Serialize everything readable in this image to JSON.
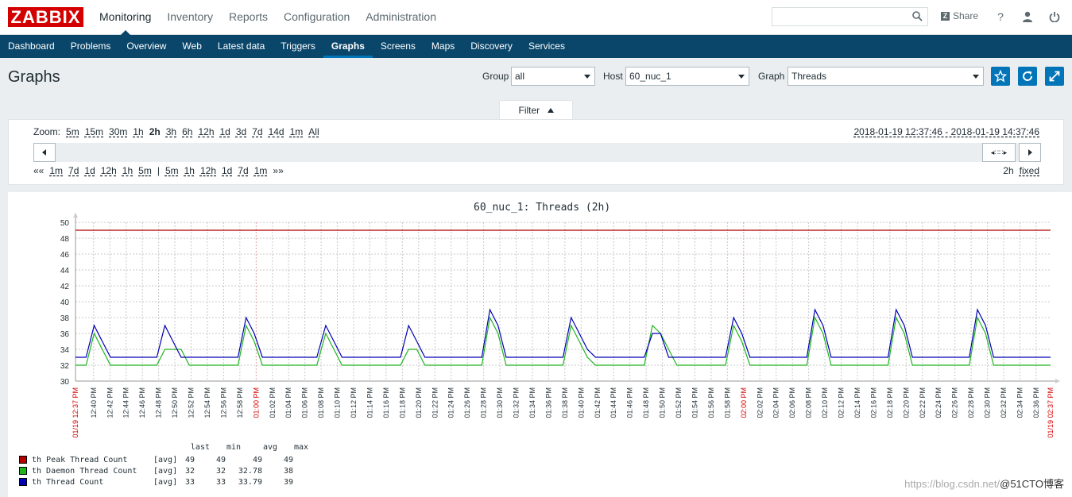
{
  "brand": {
    "logo": "ZABBIX"
  },
  "topnav": [
    "Monitoring",
    "Inventory",
    "Reports",
    "Configuration",
    "Administration"
  ],
  "header": {
    "share_label": "Share",
    "help": "?",
    "search_placeholder": ""
  },
  "subnav": [
    "Dashboard",
    "Problems",
    "Overview",
    "Web",
    "Latest data",
    "Triggers",
    "Graphs",
    "Screens",
    "Maps",
    "Discovery",
    "Services"
  ],
  "page": {
    "title": "Graphs",
    "group_label": "Group",
    "group_value": "all",
    "host_label": "Host",
    "host_value": "60_nuc_1",
    "graph_label": "Graph",
    "graph_value": "Threads"
  },
  "filter": {
    "tab_label": "Filter",
    "zoom_label": "Zoom:",
    "zoom": [
      "5m",
      "15m",
      "30m",
      "1h",
      "2h",
      "3h",
      "6h",
      "12h",
      "1d",
      "3d",
      "7d",
      "14d",
      "1m",
      "All"
    ],
    "zoom_active": "2h",
    "period": "2018-01-19 12:37:46 - 2018-01-19 14:37:46",
    "back_start": "««",
    "back": [
      "1m",
      "7d",
      "1d",
      "12h",
      "1h",
      "5m"
    ],
    "sep": "|",
    "fwd": [
      "5m",
      "1h",
      "12h",
      "1d",
      "7d",
      "1m"
    ],
    "fwd_end": "»»",
    "duration": "2h",
    "fixed_label": "fixed",
    "handle": "◂∷∷▸"
  },
  "graph": {
    "title": "60_nuc_1: Threads (2h)"
  },
  "chart_data": {
    "type": "line",
    "ylim": [
      30,
      50
    ],
    "yticks": [
      30,
      32,
      34,
      36,
      38,
      40,
      42,
      44,
      46,
      48,
      50
    ],
    "x_start_label": "01/19 12:37 PM",
    "x_end_label": "01/19 02:37 PM",
    "x_mid_labels": [
      "01:00 PM",
      "02:00 PM"
    ],
    "x_ticks": [
      "12:40 PM",
      "12:42 PM",
      "12:44 PM",
      "12:46 PM",
      "12:48 PM",
      "12:50 PM",
      "12:52 PM",
      "12:54 PM",
      "12:56 PM",
      "12:58 PM",
      "01:00 PM",
      "01:02 PM",
      "01:04 PM",
      "01:06 PM",
      "01:08 PM",
      "01:10 PM",
      "01:12 PM",
      "01:14 PM",
      "01:16 PM",
      "01:18 PM",
      "01:20 PM",
      "01:22 PM",
      "01:24 PM",
      "01:26 PM",
      "01:28 PM",
      "01:30 PM",
      "01:32 PM",
      "01:34 PM",
      "01:36 PM",
      "01:38 PM",
      "01:40 PM",
      "01:42 PM",
      "01:44 PM",
      "01:46 PM",
      "01:48 PM",
      "01:50 PM",
      "01:52 PM",
      "01:54 PM",
      "01:56 PM",
      "01:58 PM",
      "02:00 PM",
      "02:02 PM",
      "02:04 PM",
      "02:06 PM",
      "02:08 PM",
      "02:10 PM",
      "02:12 PM",
      "02:14 PM",
      "02:16 PM",
      "02:18 PM",
      "02:20 PM",
      "02:22 PM",
      "02:24 PM",
      "02:26 PM",
      "02:28 PM",
      "02:30 PM",
      "02:32 PM",
      "02:34 PM",
      "02:36 PM"
    ],
    "series": [
      {
        "name": "th Peak Thread Count",
        "color": "#b40000",
        "values_note": "constant",
        "x": [
          0,
          120
        ],
        "y": [
          49,
          49
        ]
      },
      {
        "name": "th Daemon Thread Count",
        "color": "#1fb41f",
        "x": [
          0,
          1.3,
          2.3,
          3.3,
          4.3,
          10,
          11,
          12,
          13,
          14,
          20,
          21,
          22,
          23,
          24,
          29.7,
          30.8,
          31.8,
          32.8,
          33.8,
          40,
          41,
          42,
          43,
          44,
          50,
          51,
          52,
          53,
          54,
          60,
          61,
          62,
          63,
          64,
          70,
          71,
          72,
          73,
          74,
          74.3,
          80,
          81,
          82,
          83,
          84,
          90,
          91,
          92,
          93,
          94,
          100,
          101,
          102,
          103,
          104,
          110,
          111,
          112,
          113,
          114,
          120
        ],
        "y": [
          32,
          32,
          36,
          34,
          32,
          32,
          34,
          34,
          34,
          32,
          32,
          37,
          35,
          32,
          32,
          32,
          36,
          34,
          32,
          32,
          32,
          34,
          34,
          32,
          32,
          32,
          38,
          36,
          32,
          32,
          32,
          37,
          35,
          33,
          32,
          32,
          37,
          36,
          34,
          32,
          32,
          32,
          37,
          35,
          32,
          32,
          32,
          38,
          36,
          32,
          32,
          32,
          38,
          36,
          32,
          32,
          32,
          38,
          36,
          32,
          32,
          32
        ]
      },
      {
        "name": "th Thread Count",
        "color": "#0000b4",
        "x": [
          0,
          1.3,
          2.3,
          3.3,
          4.3,
          10,
          11,
          12,
          13,
          14,
          20,
          21,
          22,
          23,
          24,
          29.7,
          30.8,
          31.8,
          32.8,
          33.8,
          40,
          41,
          42,
          43,
          44,
          50,
          51,
          52,
          53,
          54,
          60,
          61,
          62,
          63,
          64,
          70,
          71,
          72,
          73,
          74,
          80,
          81,
          82,
          83,
          84,
          90,
          91,
          92,
          93,
          94,
          100,
          101,
          102,
          103,
          104,
          110,
          111,
          112,
          113,
          114,
          120
        ],
        "y": [
          33,
          33,
          37,
          35,
          33,
          33,
          37,
          35,
          33,
          33,
          33,
          38,
          36,
          33,
          33,
          33,
          37,
          35,
          33,
          33,
          33,
          37,
          35,
          33,
          33,
          33,
          39,
          37,
          33,
          33,
          33,
          38,
          36,
          34,
          33,
          33,
          36,
          36,
          33,
          33,
          33,
          38,
          36,
          33,
          33,
          33,
          39,
          37,
          33,
          33,
          33,
          39,
          37,
          33,
          33,
          33,
          39,
          37,
          33,
          33,
          33
        ]
      }
    ]
  },
  "legend": {
    "headers": [
      "last",
      "min",
      "avg",
      "max"
    ],
    "rows": [
      {
        "name": "th Peak Thread Count",
        "fn": "[avg]",
        "last": "49",
        "min": "49",
        "avg": "49",
        "max": "49",
        "color": "#b40000"
      },
      {
        "name": "th Daemon Thread Count",
        "fn": "[avg]",
        "last": "32",
        "min": "32",
        "avg": "32.78",
        "max": "38",
        "color": "#1fb41f"
      },
      {
        "name": "th Thread Count",
        "fn": "[avg]",
        "last": "33",
        "min": "33",
        "avg": "33.79",
        "max": "39",
        "color": "#0000b4"
      }
    ]
  },
  "watermark": {
    "faint": "https://blog.csdn.net/",
    "bold": "@51CTO博客"
  }
}
